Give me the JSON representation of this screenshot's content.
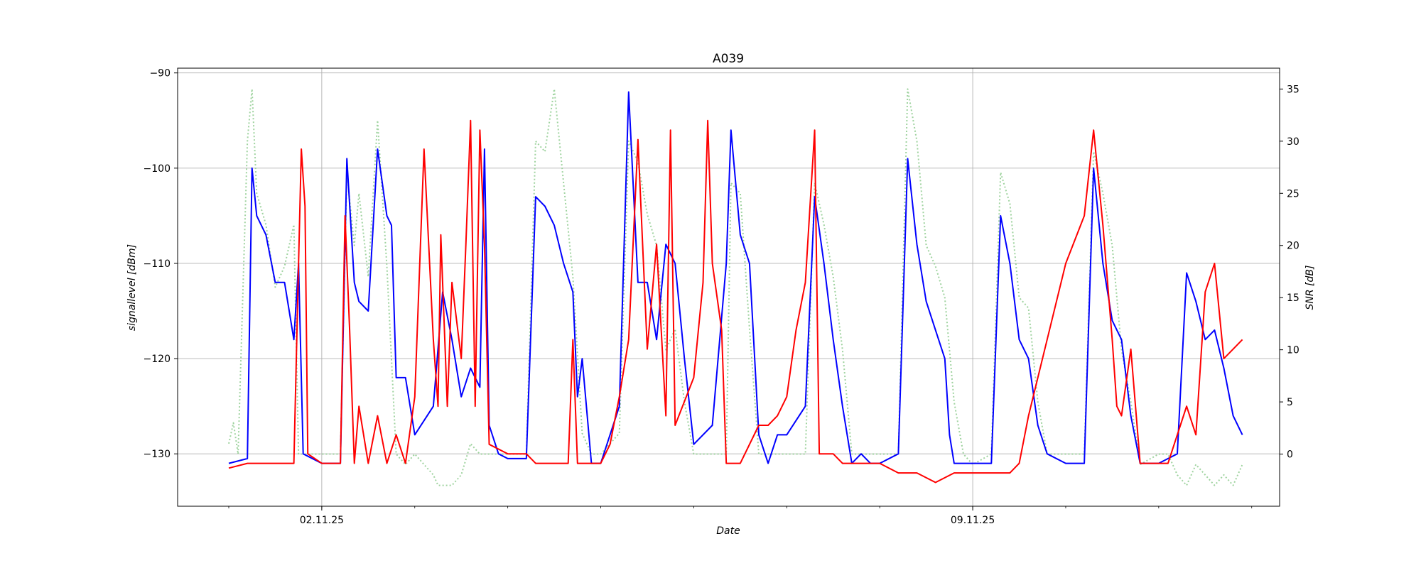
{
  "chart_data": {
    "type": "line",
    "title": "A039",
    "xlabel": "Date",
    "ylabel_left": "signallevel [dBm]",
    "ylabel_right": "SNR [dB]",
    "x_tick_labels": [
      "02.11.25",
      "09.11.25"
    ],
    "x_range_days": [
      -1.55,
      10.3
    ],
    "ylim_left": [
      -135.5,
      -89.5
    ],
    "ylim_right": [
      -5,
      37
    ],
    "y_ticks_left": [
      -130,
      -120,
      -110,
      -100,
      -90
    ],
    "y_ticks_right": [
      0,
      5,
      10,
      15,
      20,
      25,
      30,
      35
    ],
    "grid": true,
    "series": [
      {
        "color": "#0000ff",
        "style": "solid",
        "axis": "left",
        "points": [
          [
            -1.0,
            -131
          ],
          [
            -0.8,
            -130.5
          ],
          [
            -0.75,
            -100
          ],
          [
            -0.7,
            -105
          ],
          [
            -0.6,
            -107
          ],
          [
            -0.5,
            -112
          ],
          [
            -0.4,
            -112
          ],
          [
            -0.3,
            -118
          ],
          [
            -0.25,
            -110
          ],
          [
            -0.2,
            -130
          ],
          [
            0,
            -131
          ],
          [
            0.2,
            -131
          ],
          [
            0.27,
            -99
          ],
          [
            0.35,
            -112
          ],
          [
            0.4,
            -114
          ],
          [
            0.5,
            -115
          ],
          [
            0.6,
            -98
          ],
          [
            0.7,
            -105
          ],
          [
            0.75,
            -106
          ],
          [
            0.8,
            -122
          ],
          [
            0.9,
            -122
          ],
          [
            1.0,
            -128
          ],
          [
            1.2,
            -125
          ],
          [
            1.3,
            -113
          ],
          [
            1.4,
            -118
          ],
          [
            1.5,
            -124
          ],
          [
            1.6,
            -121
          ],
          [
            1.7,
            -123
          ],
          [
            1.75,
            -98
          ],
          [
            1.8,
            -127
          ],
          [
            1.9,
            -130
          ],
          [
            2.0,
            -130.5
          ],
          [
            2.2,
            -130.5
          ],
          [
            2.3,
            -103
          ],
          [
            2.4,
            -104
          ],
          [
            2.5,
            -106
          ],
          [
            2.6,
            -110
          ],
          [
            2.7,
            -113
          ],
          [
            2.75,
            -124
          ],
          [
            2.8,
            -120
          ],
          [
            2.9,
            -131
          ],
          [
            3.0,
            -131
          ],
          [
            3.2,
            -125
          ],
          [
            3.3,
            -92
          ],
          [
            3.4,
            -112
          ],
          [
            3.5,
            -112
          ],
          [
            3.6,
            -118
          ],
          [
            3.7,
            -108
          ],
          [
            3.8,
            -110
          ],
          [
            3.9,
            -120
          ],
          [
            4.0,
            -129
          ],
          [
            4.2,
            -127
          ],
          [
            4.35,
            -110
          ],
          [
            4.4,
            -96
          ],
          [
            4.5,
            -107
          ],
          [
            4.6,
            -110
          ],
          [
            4.7,
            -128
          ],
          [
            4.8,
            -131
          ],
          [
            4.9,
            -128
          ],
          [
            5.0,
            -128
          ],
          [
            5.2,
            -125
          ],
          [
            5.3,
            -103
          ],
          [
            5.4,
            -110
          ],
          [
            5.5,
            -118
          ],
          [
            5.6,
            -125
          ],
          [
            5.7,
            -131
          ],
          [
            5.8,
            -130
          ],
          [
            5.9,
            -131
          ],
          [
            6.0,
            -131
          ],
          [
            6.2,
            -130
          ],
          [
            6.3,
            -99
          ],
          [
            6.4,
            -108
          ],
          [
            6.5,
            -114
          ],
          [
            6.6,
            -117
          ],
          [
            6.7,
            -120
          ],
          [
            6.75,
            -128
          ],
          [
            6.8,
            -131
          ],
          [
            7.0,
            -131
          ],
          [
            7.2,
            -131
          ],
          [
            7.3,
            -105
          ],
          [
            7.4,
            -110
          ],
          [
            7.5,
            -118
          ],
          [
            7.6,
            -120
          ],
          [
            7.7,
            -127
          ],
          [
            7.8,
            -130
          ],
          [
            8.0,
            -131
          ],
          [
            8.2,
            -131
          ],
          [
            8.3,
            -100
          ],
          [
            8.4,
            -110
          ],
          [
            8.5,
            -116
          ],
          [
            8.6,
            -118
          ],
          [
            8.7,
            -126
          ],
          [
            8.8,
            -131
          ],
          [
            9.0,
            -131
          ],
          [
            9.2,
            -130
          ],
          [
            9.3,
            -111
          ],
          [
            9.4,
            -114
          ],
          [
            9.5,
            -118
          ],
          [
            9.6,
            -117
          ],
          [
            9.7,
            -121
          ],
          [
            9.8,
            -126
          ],
          [
            9.9,
            -128
          ]
        ]
      },
      {
        "color": "#ff0000",
        "style": "solid",
        "axis": "left",
        "points": [
          [
            -1.0,
            -131.5
          ],
          [
            -0.8,
            -131
          ],
          [
            -0.6,
            -131
          ],
          [
            -0.4,
            -131
          ],
          [
            -0.3,
            -131
          ],
          [
            -0.25,
            -110
          ],
          [
            -0.22,
            -98
          ],
          [
            -0.18,
            -104
          ],
          [
            -0.15,
            -130
          ],
          [
            0,
            -131
          ],
          [
            0.2,
            -131
          ],
          [
            0.25,
            -105
          ],
          [
            0.3,
            -117
          ],
          [
            0.35,
            -131
          ],
          [
            0.4,
            -125
          ],
          [
            0.5,
            -131
          ],
          [
            0.6,
            -126
          ],
          [
            0.7,
            -131
          ],
          [
            0.8,
            -128
          ],
          [
            0.9,
            -131
          ],
          [
            1.0,
            -124
          ],
          [
            1.1,
            -98
          ],
          [
            1.2,
            -118
          ],
          [
            1.25,
            -125
          ],
          [
            1.28,
            -107
          ],
          [
            1.35,
            -125
          ],
          [
            1.4,
            -112
          ],
          [
            1.5,
            -120
          ],
          [
            1.55,
            -108
          ],
          [
            1.6,
            -95
          ],
          [
            1.65,
            -125
          ],
          [
            1.7,
            -96
          ],
          [
            1.75,
            -108
          ],
          [
            1.8,
            -129
          ],
          [
            2.0,
            -130
          ],
          [
            2.2,
            -130
          ],
          [
            2.3,
            -131
          ],
          [
            2.5,
            -131
          ],
          [
            2.65,
            -131
          ],
          [
            2.7,
            -118
          ],
          [
            2.75,
            -131
          ],
          [
            2.9,
            -131
          ],
          [
            3.0,
            -131
          ],
          [
            3.1,
            -129
          ],
          [
            3.2,
            -124
          ],
          [
            3.3,
            -118
          ],
          [
            3.4,
            -97
          ],
          [
            3.5,
            -119
          ],
          [
            3.6,
            -108
          ],
          [
            3.7,
            -126
          ],
          [
            3.75,
            -96
          ],
          [
            3.8,
            -127
          ],
          [
            4.0,
            -122
          ],
          [
            4.1,
            -112
          ],
          [
            4.15,
            -95
          ],
          [
            4.2,
            -110
          ],
          [
            4.3,
            -117
          ],
          [
            4.35,
            -131
          ],
          [
            4.4,
            -131
          ],
          [
            4.5,
            -131
          ],
          [
            4.7,
            -127
          ],
          [
            4.8,
            -127
          ],
          [
            4.9,
            -126
          ],
          [
            5.0,
            -124
          ],
          [
            5.1,
            -117
          ],
          [
            5.2,
            -112
          ],
          [
            5.3,
            -96
          ],
          [
            5.35,
            -130
          ],
          [
            5.5,
            -130
          ],
          [
            5.6,
            -131
          ],
          [
            5.8,
            -131
          ],
          [
            6.0,
            -131
          ],
          [
            6.2,
            -132
          ],
          [
            6.4,
            -132
          ],
          [
            6.6,
            -133
          ],
          [
            6.8,
            -132
          ],
          [
            7.0,
            -132
          ],
          [
            7.2,
            -132
          ],
          [
            7.4,
            -132
          ],
          [
            7.5,
            -131
          ],
          [
            7.6,
            -126
          ],
          [
            7.8,
            -118
          ],
          [
            8.0,
            -110
          ],
          [
            8.2,
            -105
          ],
          [
            8.3,
            -96
          ],
          [
            8.4,
            -106
          ],
          [
            8.5,
            -118
          ],
          [
            8.55,
            -125
          ],
          [
            8.6,
            -126
          ],
          [
            8.7,
            -119
          ],
          [
            8.8,
            -131
          ],
          [
            9.0,
            -131
          ],
          [
            9.1,
            -131
          ],
          [
            9.2,
            -128
          ],
          [
            9.3,
            -125
          ],
          [
            9.4,
            -128
          ],
          [
            9.5,
            -113
          ],
          [
            9.6,
            -110
          ],
          [
            9.7,
            -120
          ],
          [
            9.8,
            -119
          ],
          [
            9.9,
            -118
          ]
        ]
      },
      {
        "color": "#9fd39f",
        "style": "dotted",
        "axis": "right",
        "points": [
          [
            -1.0,
            1
          ],
          [
            -0.95,
            3
          ],
          [
            -0.9,
            0
          ],
          [
            -0.8,
            30
          ],
          [
            -0.75,
            35
          ],
          [
            -0.7,
            25
          ],
          [
            -0.6,
            22
          ],
          [
            -0.5,
            16
          ],
          [
            -0.4,
            18
          ],
          [
            -0.3,
            22
          ],
          [
            -0.25,
            0
          ],
          [
            -0.2,
            0
          ],
          [
            0,
            0
          ],
          [
            0.1,
            0
          ],
          [
            0.2,
            0
          ],
          [
            0.27,
            27
          ],
          [
            0.35,
            20
          ],
          [
            0.4,
            25
          ],
          [
            0.5,
            17
          ],
          [
            0.6,
            32
          ],
          [
            0.7,
            18
          ],
          [
            0.8,
            0
          ],
          [
            0.9,
            -1
          ],
          [
            1.0,
            0
          ],
          [
            1.1,
            -1
          ],
          [
            1.2,
            -2
          ],
          [
            1.25,
            -3
          ],
          [
            1.4,
            -3
          ],
          [
            1.5,
            -2
          ],
          [
            1.6,
            1
          ],
          [
            1.7,
            0
          ],
          [
            1.8,
            0
          ],
          [
            2.0,
            0
          ],
          [
            2.2,
            0
          ],
          [
            2.3,
            30
          ],
          [
            2.4,
            29
          ],
          [
            2.5,
            35
          ],
          [
            2.6,
            26
          ],
          [
            2.7,
            17
          ],
          [
            2.8,
            2
          ],
          [
            2.9,
            0
          ],
          [
            3.0,
            0
          ],
          [
            3.2,
            2
          ],
          [
            3.3,
            30
          ],
          [
            3.4,
            28
          ],
          [
            3.5,
            23
          ],
          [
            3.6,
            20
          ],
          [
            3.7,
            10
          ],
          [
            3.8,
            12
          ],
          [
            3.9,
            5
          ],
          [
            4.0,
            0
          ],
          [
            4.2,
            0
          ],
          [
            4.35,
            0
          ],
          [
            4.4,
            26
          ],
          [
            4.5,
            25
          ],
          [
            4.6,
            12
          ],
          [
            4.7,
            0
          ],
          [
            4.8,
            0
          ],
          [
            5.0,
            0
          ],
          [
            5.2,
            0
          ],
          [
            5.3,
            26
          ],
          [
            5.4,
            22
          ],
          [
            5.5,
            17
          ],
          [
            5.6,
            10
          ],
          [
            5.7,
            0
          ],
          [
            5.8,
            0
          ],
          [
            6.0,
            0
          ],
          [
            6.2,
            0
          ],
          [
            6.3,
            35
          ],
          [
            6.4,
            30
          ],
          [
            6.5,
            20
          ],
          [
            6.6,
            18
          ],
          [
            6.7,
            15
          ],
          [
            6.8,
            5
          ],
          [
            6.9,
            0
          ],
          [
            7.0,
            -1
          ],
          [
            7.2,
            0
          ],
          [
            7.3,
            27
          ],
          [
            7.4,
            24
          ],
          [
            7.5,
            15
          ],
          [
            7.6,
            14
          ],
          [
            7.7,
            5
          ],
          [
            7.8,
            0
          ],
          [
            8.0,
            0
          ],
          [
            8.2,
            0
          ],
          [
            8.3,
            29
          ],
          [
            8.4,
            25
          ],
          [
            8.5,
            20
          ],
          [
            8.6,
            10
          ],
          [
            8.7,
            5
          ],
          [
            8.8,
            -1
          ],
          [
            9.0,
            0
          ],
          [
            9.1,
            0
          ],
          [
            9.2,
            -2
          ],
          [
            9.3,
            -3
          ],
          [
            9.4,
            -1
          ],
          [
            9.5,
            -2
          ],
          [
            9.6,
            -3
          ],
          [
            9.7,
            -2
          ],
          [
            9.8,
            -3
          ],
          [
            9.9,
            -1
          ]
        ]
      }
    ]
  }
}
